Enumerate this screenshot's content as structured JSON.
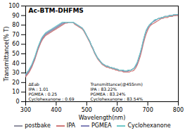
{
  "chart_data": {
    "type": "line",
    "title": "Ac-BTM-DHFMS",
    "xlabel": "Wavelength(nm)",
    "ylabel": "Transmittance(% T)",
    "annotations": [
      "ΔEab\nIPA : 1.01\nPGMEA : 0.25\nCyclohexanone : 0.69",
      "Transmittance(@455nm)\nIPA : 83.22%\nPGMEA : 83.24%\nCyclohexanone : 83.54%"
    ],
    "xlim": [
      300,
      800
    ],
    "ylim": [
      0,
      100
    ],
    "xticks": [
      300,
      400,
      500,
      600,
      700,
      800
    ],
    "yticks": [
      0,
      10,
      20,
      30,
      40,
      50,
      60,
      70,
      80,
      90,
      100
    ],
    "grid": false,
    "legend": "bottom",
    "x": [
      300,
      305,
      310,
      315,
      320,
      325,
      330,
      335,
      340,
      345,
      350,
      355,
      360,
      365,
      370,
      375,
      380,
      385,
      390,
      395,
      400,
      405,
      410,
      415,
      420,
      425,
      430,
      435,
      440,
      445,
      450,
      455,
      460,
      465,
      470,
      475,
      480,
      485,
      490,
      495,
      500,
      505,
      510,
      515,
      520,
      525,
      530,
      535,
      540,
      545,
      550,
      555,
      560,
      565,
      570,
      575,
      580,
      585,
      590,
      595,
      600,
      605,
      610,
      615,
      620,
      625,
      630,
      635,
      640,
      645,
      650,
      655,
      660,
      665,
      670,
      675,
      680,
      685,
      690,
      695,
      700,
      705,
      710,
      715,
      720,
      725,
      730,
      735,
      740,
      745,
      750,
      755,
      760,
      765,
      770,
      775,
      780,
      785,
      790,
      795,
      800
    ],
    "series": [
      {
        "name": "postbake",
        "color": "#9090a0",
        "values": [
          27,
          29,
          31,
          34,
          37,
          41,
          45,
          50,
          55,
          59,
          63,
          66,
          68,
          70,
          71,
          72,
          73,
          74,
          75,
          76,
          77,
          78,
          79,
          80,
          81,
          82,
          83,
          83,
          83,
          83,
          83,
          83,
          82,
          81,
          80,
          79,
          78,
          77,
          75,
          72,
          69,
          66,
          63,
          59,
          56,
          52,
          49,
          46,
          44,
          42,
          40,
          39,
          38,
          37,
          37,
          36,
          36,
          35,
          35,
          34,
          34,
          33,
          33,
          33,
          32,
          32,
          32,
          32,
          33,
          33,
          34,
          35,
          37,
          40,
          45,
          50,
          56,
          63,
          69,
          74,
          77,
          80,
          81,
          83,
          84,
          85,
          86,
          87,
          87,
          88,
          88,
          89,
          89,
          89,
          90,
          90,
          90,
          90,
          90,
          91,
          91
        ]
      },
      {
        "name": "IPA",
        "color": "#d07878",
        "values": [
          26,
          28,
          30,
          33,
          36,
          40,
          44,
          49,
          54,
          58,
          62,
          65,
          67,
          69,
          70,
          71,
          72,
          73,
          74,
          75,
          76,
          77,
          78,
          79,
          80,
          81,
          82,
          82,
          83,
          83,
          83,
          83,
          81,
          80,
          79,
          78,
          77,
          76,
          74,
          71,
          68,
          65,
          62,
          58,
          55,
          51,
          48,
          45,
          43,
          41,
          39,
          38,
          37,
          36,
          36,
          35,
          35,
          34,
          34,
          33,
          33,
          32,
          32,
          32,
          31,
          31,
          31,
          31,
          31,
          32,
          32,
          33,
          35,
          38,
          42,
          47,
          53,
          60,
          66,
          71,
          75,
          78,
          80,
          81,
          82,
          83,
          84,
          85,
          86,
          87,
          87,
          88,
          88,
          88,
          89,
          89,
          89,
          90,
          90,
          90,
          90
        ]
      },
      {
        "name": "PGMEA",
        "color": "#8080b8",
        "values": [
          28,
          30,
          32,
          35,
          38,
          42,
          46,
          51,
          56,
          60,
          64,
          67,
          69,
          71,
          72,
          73,
          74,
          75,
          76,
          77,
          78,
          79,
          80,
          81,
          82,
          82,
          83,
          83,
          83,
          83,
          83,
          83,
          82,
          81,
          80,
          79,
          78,
          77,
          75,
          72,
          69,
          66,
          63,
          59,
          56,
          52,
          49,
          46,
          44,
          42,
          40,
          39,
          38,
          37,
          37,
          36,
          36,
          35,
          35,
          34,
          34,
          33,
          33,
          33,
          32,
          32,
          32,
          32,
          33,
          33,
          34,
          35,
          37,
          40,
          45,
          50,
          56,
          63,
          69,
          74,
          77,
          80,
          81,
          83,
          84,
          85,
          86,
          87,
          87,
          88,
          88,
          89,
          89,
          89,
          90,
          90,
          90,
          91,
          91,
          91,
          91
        ]
      },
      {
        "name": "Cyclohexanone",
        "color": "#70c8c8",
        "values": [
          29,
          31,
          33,
          36,
          39,
          43,
          47,
          52,
          57,
          61,
          65,
          68,
          70,
          72,
          73,
          74,
          75,
          76,
          77,
          78,
          79,
          80,
          81,
          82,
          83,
          83,
          83,
          83,
          83,
          83,
          83,
          83,
          82,
          81,
          80,
          79,
          78,
          77,
          75,
          72,
          69,
          66,
          63,
          59,
          56,
          52,
          49,
          46,
          44,
          42,
          40,
          39,
          38,
          37,
          37,
          36,
          36,
          35,
          35,
          34,
          34,
          33,
          33,
          33,
          33,
          32,
          32,
          33,
          33,
          33,
          34,
          35,
          38,
          41,
          46,
          51,
          57,
          64,
          70,
          75,
          78,
          80,
          82,
          83,
          85,
          86,
          86,
          87,
          87,
          88,
          88,
          89,
          89,
          89,
          90,
          90,
          90,
          91,
          91,
          91,
          91
        ]
      }
    ]
  }
}
